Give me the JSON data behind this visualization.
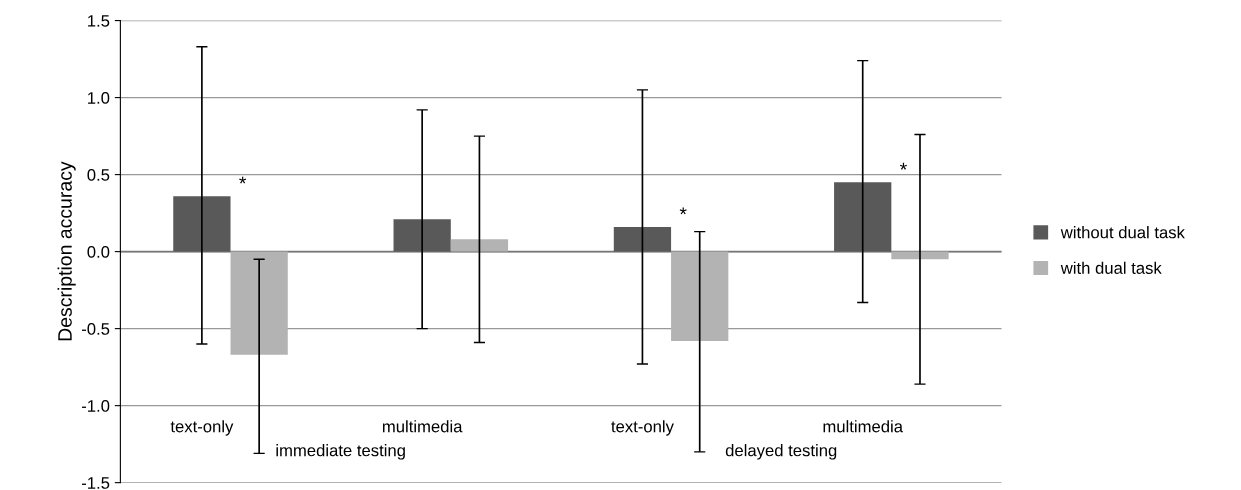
{
  "chart_data": {
    "type": "bar",
    "ylabel": "Description accuracy",
    "categories": [
      "text-only",
      "multimedia",
      "text-only",
      "multimedia"
    ],
    "series": [
      {
        "name": "without dual task",
        "color": "#595959",
        "values": [
          0.36,
          0.21,
          0.16,
          0.45
        ],
        "errors": [
          [
            -0.6,
            1.33
          ],
          [
            -0.5,
            0.92
          ],
          [
            -0.73,
            1.05
          ],
          [
            -0.33,
            1.24
          ]
        ]
      },
      {
        "name": "with dual task",
        "color": "#b3b3b3",
        "values": [
          -0.67,
          0.08,
          -0.58,
          -0.05
        ],
        "errors": [
          [
            -1.31,
            -0.05
          ],
          [
            -0.59,
            0.75
          ],
          [
            -1.3,
            0.13
          ],
          [
            -0.86,
            0.76
          ]
        ]
      }
    ],
    "ylim": [
      -1.5,
      1.5
    ],
    "yticks": [
      {
        "value": -1.5,
        "label": "-1.5"
      },
      {
        "value": -1.0,
        "label": "-1.0"
      },
      {
        "value": -0.5,
        "label": "-0.5"
      },
      {
        "value": 0,
        "label": "0.0"
      },
      {
        "value": 0.5,
        "label": "0.5"
      },
      {
        "value": 1.0,
        "label": "1.0"
      },
      {
        "value": 1.5,
        "label": "1.5"
      }
    ],
    "grid": "y",
    "legend": "right",
    "annotations": [
      "immediate testing",
      "delayed testing",
      "*",
      "*",
      "*"
    ]
  }
}
